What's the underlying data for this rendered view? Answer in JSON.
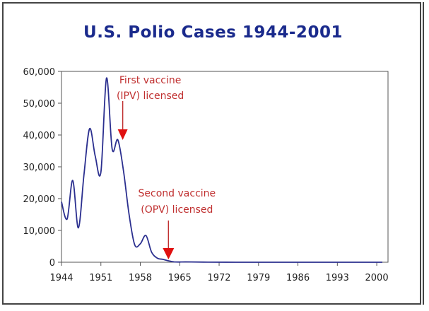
{
  "chart_data": {
    "type": "line",
    "title": "U.S. Polio Cases 1944-2001",
    "xlabel": "",
    "ylabel": "",
    "xlim": [
      1944,
      2002
    ],
    "ylim": [
      0,
      60000
    ],
    "x_ticks": [
      "1944",
      "1951",
      "1958",
      "1965",
      "1972",
      "1979",
      "1986",
      "1993",
      "2000"
    ],
    "y_ticks": [
      "0",
      "10,000",
      "20,000",
      "30,000",
      "40,000",
      "50,000",
      "60,000"
    ],
    "grid": false,
    "series": [
      {
        "color": "#2b2f8f",
        "x": [
          1944,
          1945,
          1946,
          1947,
          1948,
          1949,
          1950,
          1951,
          1952,
          1953,
          1954,
          1955,
          1956,
          1957,
          1958,
          1959,
          1960,
          1961,
          1962,
          1963,
          1964,
          1965,
          1966,
          1970,
          1975,
          1980,
          1985,
          1990,
          1995,
          2001
        ],
        "y": [
          19000,
          13600,
          25700,
          10800,
          27700,
          42000,
          33300,
          28400,
          57900,
          35600,
          38500,
          28900,
          15100,
          5500,
          5800,
          8400,
          3200,
          1300,
          900,
          450,
          120,
          70,
          110,
          30,
          10,
          10,
          10,
          5,
          5,
          0
        ]
      }
    ],
    "annotations": [
      {
        "lines": [
          "First vaccine",
          "(IPV) licensed"
        ],
        "year": 1955
      },
      {
        "lines": [
          "Second vaccine",
          "(OPV) licensed"
        ],
        "year": 1963
      }
    ],
    "colors": {
      "title": "#1a2a8c",
      "annotation": "#c03030",
      "arrow": "#e01010",
      "line": "#2b2f8f"
    }
  }
}
